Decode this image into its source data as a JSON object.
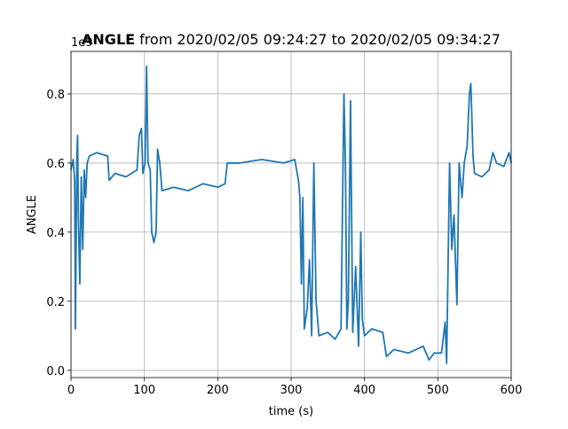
{
  "chart_data": {
    "type": "line",
    "title_prefix": "ANGLE",
    "title": "from 2020/02/05 09:24:27 to 2020/02/05 09:34:27",
    "x_label": "time (s)",
    "y_label": "ANGLE",
    "y_offset_label": "1e9",
    "xlim": [
      0,
      600
    ],
    "xticks": [
      0,
      100,
      200,
      300,
      400,
      500,
      600
    ],
    "ylim": [
      -0.021,
      0.923
    ],
    "yticks": [
      {
        "value": 0,
        "label": "0.0"
      },
      0.2,
      0.4,
      0.6,
      0.8
    ],
    "grid": true,
    "series": [
      {
        "name": "ANGLE",
        "color": "#1f77b4",
        "x": [
          0,
          3,
          5,
          6,
          8,
          9,
          10,
          12,
          14,
          16,
          18,
          20,
          22,
          25,
          35,
          50,
          52,
          60,
          75,
          90,
          93,
          96,
          98,
          101,
          103,
          105,
          108,
          110,
          113,
          116,
          118,
          121,
          124,
          140,
          160,
          180,
          200,
          210,
          213,
          230,
          260,
          290,
          305,
          310,
          312,
          314,
          316,
          318,
          322,
          325,
          328,
          331,
          334,
          338,
          350,
          360,
          368,
          372,
          374,
          376,
          378,
          381,
          384,
          388,
          392,
          395,
          397,
          400,
          410,
          425,
          430,
          440,
          460,
          480,
          488,
          495,
          505,
          510,
          512,
          516,
          519,
          522,
          526,
          529,
          533,
          536,
          540,
          543,
          545,
          548,
          550,
          560,
          570,
          575,
          580,
          590,
          597,
          600
        ],
        "values": [
          0.58,
          0.61,
          0.55,
          0.12,
          0.62,
          0.68,
          0.45,
          0.25,
          0.56,
          0.35,
          0.58,
          0.5,
          0.6,
          0.62,
          0.63,
          0.62,
          0.55,
          0.57,
          0.56,
          0.58,
          0.68,
          0.7,
          0.57,
          0.6,
          0.88,
          0.6,
          0.58,
          0.4,
          0.37,
          0.4,
          0.64,
          0.6,
          0.52,
          0.53,
          0.52,
          0.54,
          0.53,
          0.54,
          0.6,
          0.6,
          0.61,
          0.6,
          0.61,
          0.55,
          0.5,
          0.25,
          0.5,
          0.12,
          0.18,
          0.32,
          0.1,
          0.6,
          0.2,
          0.1,
          0.11,
          0.09,
          0.12,
          0.8,
          0.6,
          0.12,
          0.2,
          0.78,
          0.11,
          0.3,
          0.07,
          0.4,
          0.15,
          0.1,
          0.12,
          0.11,
          0.04,
          0.06,
          0.05,
          0.07,
          0.03,
          0.05,
          0.05,
          0.14,
          0.02,
          0.6,
          0.35,
          0.45,
          0.19,
          0.6,
          0.5,
          0.6,
          0.65,
          0.8,
          0.83,
          0.62,
          0.57,
          0.56,
          0.58,
          0.63,
          0.6,
          0.59,
          0.63,
          0.6
        ]
      }
    ]
  }
}
